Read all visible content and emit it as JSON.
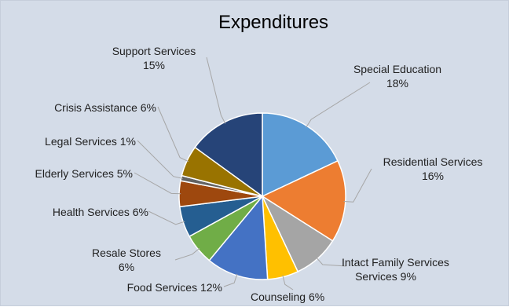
{
  "chart_data": {
    "type": "pie",
    "title": "Expenditures",
    "slices": [
      {
        "label": "Special Education",
        "pct": "18%",
        "value": 18,
        "color": "#5b9bd5"
      },
      {
        "label": "Residential Services",
        "pct": "16%",
        "value": 16,
        "color": "#ed7d31"
      },
      {
        "label": "Intact Family Services",
        "pct": "9%",
        "value": 9,
        "color": "#a5a5a5"
      },
      {
        "label": "Counseling",
        "pct": "6%",
        "value": 6,
        "color": "#ffc000"
      },
      {
        "label": "Food Services",
        "pct": "12%",
        "value": 12,
        "color": "#4472c4"
      },
      {
        "label": "Resale Stores",
        "pct": "6%",
        "value": 6,
        "color": "#70ad47"
      },
      {
        "label": "Health Services",
        "pct": "6%",
        "value": 6,
        "color": "#255e91"
      },
      {
        "label": "Elderly Services",
        "pct": "5%",
        "value": 5,
        "color": "#9e480e"
      },
      {
        "label": "Legal Services",
        "pct": "1%",
        "value": 1,
        "color": "#636363"
      },
      {
        "label": "Crisis Assistance",
        "pct": "6%",
        "value": 6,
        "color": "#997300"
      },
      {
        "label": "Support Services",
        "pct": "15%",
        "value": 15,
        "color": "#264478"
      }
    ]
  }
}
